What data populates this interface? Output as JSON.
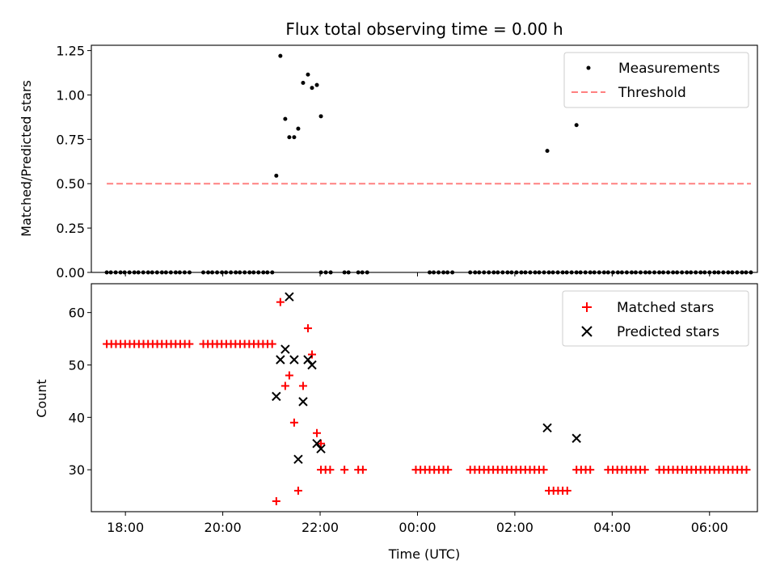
{
  "title": "Flux total observing time = 0.00 h",
  "chart_data": [
    {
      "type": "scatter",
      "panel": "top",
      "ylabel": "Matched/Predicted stars",
      "xlabel": "",
      "xlim": [
        "17:18",
        "30:59"
      ],
      "ylim": [
        0,
        1.28
      ],
      "yticks": [
        0,
        0.25,
        0.5,
        0.75,
        1.0,
        1.25
      ],
      "ytick_labels": [
        "0.00",
        "0.25",
        "0.50",
        "0.75",
        "1.00",
        "1.25"
      ],
      "legend_position": "top-right",
      "series": [
        {
          "name": "Measurements",
          "marker": "dot",
          "color": "#000000",
          "points": [
            [
              "21:06",
              0.545
            ],
            [
              "21:11",
              1.22
            ],
            [
              "21:17",
              0.865
            ],
            [
              "21:22",
              0.762
            ],
            [
              "21:28",
              0.762
            ],
            [
              "21:33",
              0.81
            ],
            [
              "21:39",
              1.068
            ],
            [
              "21:45",
              1.115
            ],
            [
              "21:50",
              1.04
            ],
            [
              "21:56",
              1.056
            ],
            [
              "22:01",
              0.88
            ],
            [
              "26:40",
              0.685
            ],
            [
              "27:16",
              0.83
            ]
          ],
          "zeros": [
            "17:37",
            "17:42",
            "17:48",
            "17:54",
            "17:59",
            "18:05",
            "18:11",
            "18:16",
            "18:22",
            "18:28",
            "18:33",
            "18:39",
            "18:45",
            "18:50",
            "18:56",
            "19:02",
            "19:07",
            "19:13",
            "19:19",
            "19:36",
            "19:42",
            "19:47",
            "19:53",
            "19:59",
            "20:04",
            "20:10",
            "20:16",
            "20:21",
            "20:27",
            "20:33",
            "20:38",
            "20:44",
            "20:50",
            "20:55",
            "21:01",
            "22:01",
            "22:07",
            "22:13",
            "22:30",
            "22:35",
            "22:47",
            "22:52",
            "22:58",
            "24:15",
            "24:20",
            "24:26",
            "24:32",
            "24:37",
            "24:43",
            "25:05",
            "25:11",
            "25:16",
            "25:22",
            "25:28",
            "25:34",
            "25:39",
            "25:45",
            "25:51",
            "25:56",
            "26:02",
            "26:08",
            "26:13",
            "26:19",
            "26:25",
            "26:30",
            "26:36",
            "26:42",
            "26:47",
            "26:53",
            "26:59",
            "27:04",
            "27:10",
            "27:16",
            "27:21",
            "27:27",
            "27:33",
            "27:38",
            "27:44",
            "27:50",
            "27:55",
            "28:01",
            "28:07",
            "28:12",
            "28:18",
            "28:24",
            "28:29",
            "28:35",
            "28:41",
            "28:46",
            "28:52",
            "28:58",
            "29:03",
            "29:09",
            "29:15",
            "29:20",
            "29:26",
            "29:32",
            "29:37",
            "29:43",
            "29:49",
            "29:54",
            "30:00",
            "30:06",
            "30:11",
            "30:17",
            "30:23",
            "30:28",
            "30:34",
            "30:40",
            "30:45",
            "30:51"
          ]
        },
        {
          "name": "Threshold",
          "marker": "dashed-line",
          "color": "#ff8080",
          "x": [
            "17:37",
            "30:51"
          ],
          "values": [
            0.5,
            0.5
          ]
        }
      ]
    },
    {
      "type": "scatter",
      "panel": "bottom",
      "ylabel": "Count",
      "xlabel": "Time (UTC)",
      "xlim": [
        "17:18",
        "30:59"
      ],
      "ylim": [
        22,
        65.5
      ],
      "yticks": [
        30,
        40,
        50,
        60
      ],
      "ytick_labels": [
        "30",
        "40",
        "50",
        "60"
      ],
      "xticks": [
        "18:00",
        "20:00",
        "22:00",
        "24:00",
        "26:00",
        "28:00",
        "30:00"
      ],
      "xtick_labels": [
        "18:00",
        "20:00",
        "22:00",
        "00:00",
        "02:00",
        "04:00",
        "06:00"
      ],
      "legend_position": "top-right",
      "series": [
        {
          "name": "Matched stars",
          "marker": "plus",
          "color": "#ff0000",
          "runs": [
            {
              "from": "17:37",
              "to": "19:19",
              "step_min": 5.66,
              "value": 54
            },
            {
              "from": "19:36",
              "to": "21:01",
              "step_min": 5.66,
              "value": 54
            },
            {
              "from": "22:01",
              "to": "22:13",
              "step_min": 5.66,
              "value": 30
            },
            {
              "from": "22:30",
              "to": "22:35",
              "step_min": 5.66,
              "value": 30
            },
            {
              "from": "22:47",
              "to": "22:58",
              "step_min": 5.66,
              "value": 30
            },
            {
              "from": "23:58",
              "to": "24:43",
              "step_min": 5.66,
              "value": 30
            },
            {
              "from": "25:05",
              "to": "26:36",
              "step_min": 5.66,
              "value": 30
            },
            {
              "from": "26:42",
              "to": "27:10",
              "step_min": 5.66,
              "value": 26
            },
            {
              "from": "27:16",
              "to": "27:38",
              "step_min": 5.66,
              "value": 30
            },
            {
              "from": "27:55",
              "to": "28:41",
              "step_min": 5.66,
              "value": 30
            },
            {
              "from": "28:58",
              "to": "30:51",
              "step_min": 5.66,
              "value": 30
            }
          ],
          "points": [
            [
              "21:06",
              24
            ],
            [
              "21:11",
              62
            ],
            [
              "21:17",
              46
            ],
            [
              "21:22",
              48
            ],
            [
              "21:28",
              39
            ],
            [
              "21:33",
              26
            ],
            [
              "21:39",
              46
            ],
            [
              "21:45",
              57
            ],
            [
              "21:50",
              52
            ],
            [
              "21:56",
              37
            ],
            [
              "22:01",
              35
            ]
          ]
        },
        {
          "name": "Predicted stars",
          "marker": "x",
          "color": "#000000",
          "points": [
            [
              "21:06",
              44
            ],
            [
              "21:11",
              51
            ],
            [
              "21:17",
              53
            ],
            [
              "21:22",
              63
            ],
            [
              "21:28",
              51
            ],
            [
              "21:33",
              32
            ],
            [
              "21:39",
              43
            ],
            [
              "21:45",
              51
            ],
            [
              "21:50",
              50
            ],
            [
              "21:56",
              35
            ],
            [
              "22:01",
              34
            ],
            [
              "26:40",
              38
            ],
            [
              "27:16",
              36
            ]
          ]
        }
      ]
    }
  ]
}
